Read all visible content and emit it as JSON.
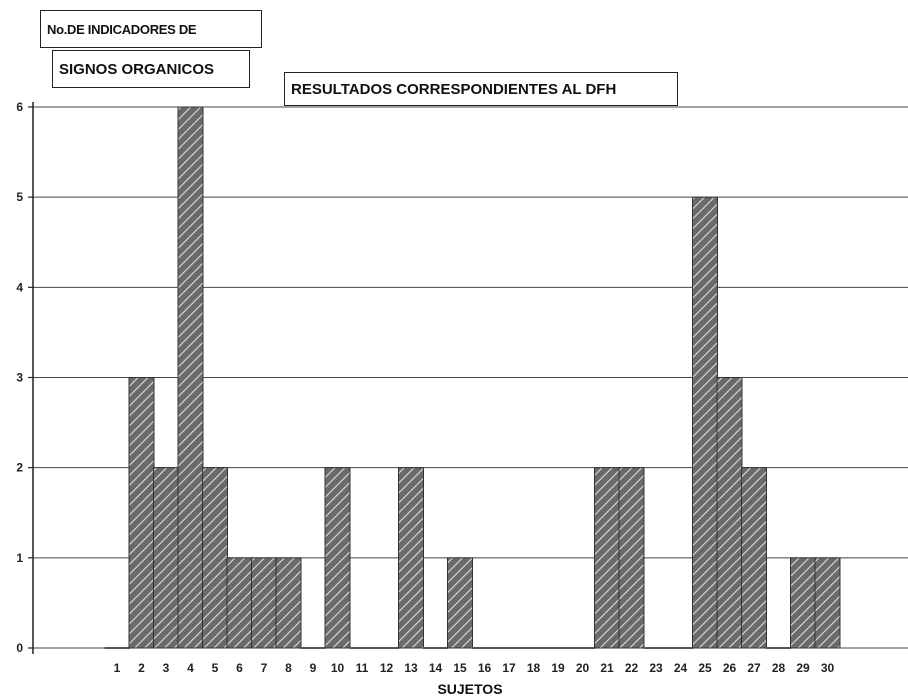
{
  "chart_data": {
    "type": "bar",
    "title": "RESULTADOS CORRESPONDIENTES AL DFH",
    "ylabel_line1": "No.DE INDICADORES DE",
    "ylabel_line2": "SIGNOS ORGANICOS",
    "xlabel": "SUJETOS",
    "categories": [
      "1",
      "2",
      "3",
      "4",
      "5",
      "6",
      "7",
      "8",
      "9",
      "10",
      "11",
      "12",
      "13",
      "14",
      "15",
      "16",
      "17",
      "18",
      "19",
      "20",
      "21",
      "22",
      "23",
      "24",
      "25",
      "26",
      "27",
      "28",
      "29",
      "30"
    ],
    "values": [
      0,
      3,
      2,
      6,
      2,
      1,
      1,
      1,
      0,
      2,
      0,
      0,
      2,
      0,
      1,
      0,
      0,
      0,
      0,
      0,
      2,
      2,
      0,
      0,
      5,
      3,
      2,
      0,
      1,
      1
    ],
    "ylim": [
      0,
      6
    ],
    "yticks": [
      "0",
      "1",
      "2",
      "3",
      "4",
      "5",
      "6"
    ],
    "grid": true,
    "colors": {
      "bar_fill": "#6a6a6a",
      "hatch": "#dcdcdc",
      "grid": "#444444"
    }
  }
}
